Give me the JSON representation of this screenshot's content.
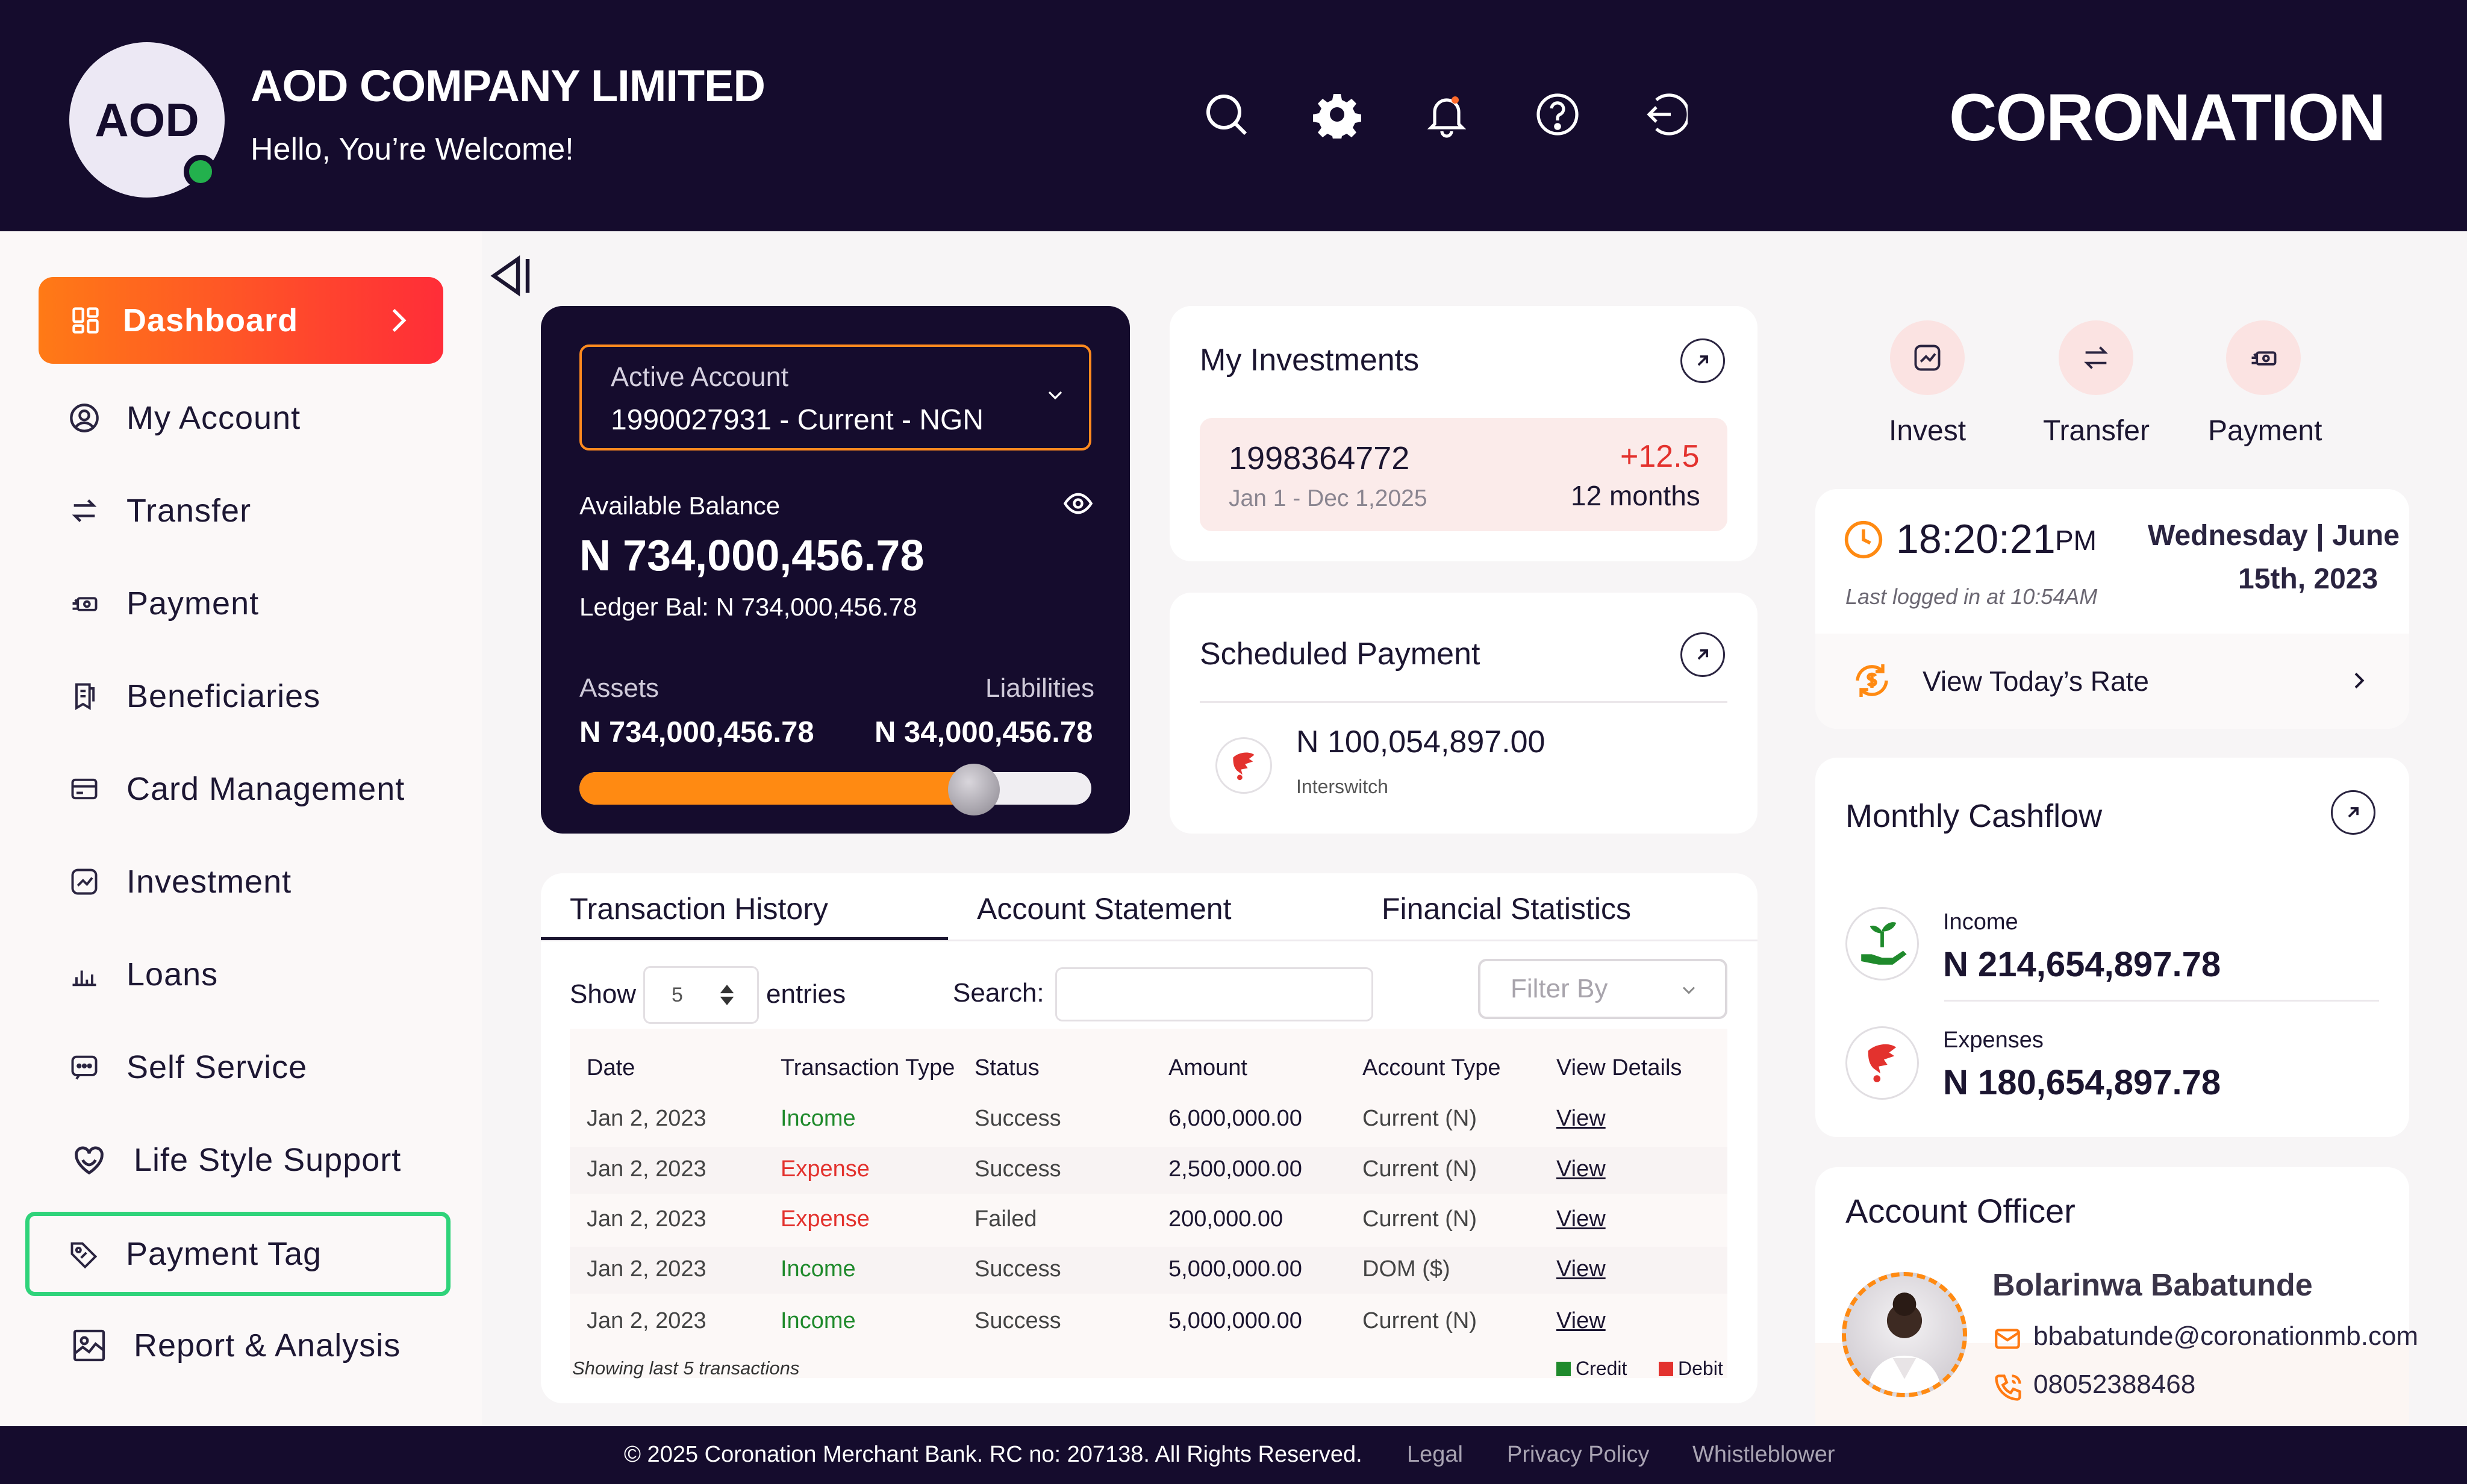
{
  "header": {
    "avatar_initials": "AOD",
    "company": "AOD COMPANY LIMITED",
    "welcome": "Hello, You’re Welcome!",
    "brand": "CORONATION",
    "icons": [
      "search-icon",
      "gear-icon",
      "bell-icon",
      "help-icon",
      "logout-icon"
    ]
  },
  "sidebar": {
    "items": [
      {
        "label": "Dashboard",
        "icon": "grid-icon"
      },
      {
        "label": "My Account",
        "icon": "user-circle-icon"
      },
      {
        "label": "Transfer",
        "icon": "transfer-icon"
      },
      {
        "label": "Payment",
        "icon": "payment-icon"
      },
      {
        "label": "Beneficiaries",
        "icon": "beneficiaries-icon"
      },
      {
        "label": "Card Management",
        "icon": "card-icon"
      },
      {
        "label": "Investment",
        "icon": "investment-icon"
      },
      {
        "label": "Loans",
        "icon": "loans-icon"
      },
      {
        "label": "Self Service",
        "icon": "self-service-icon"
      },
      {
        "label": "Life Style Support",
        "icon": "heart-icon"
      },
      {
        "label": "Payment Tag",
        "icon": "tag-icon"
      },
      {
        "label": "Report & Analysis",
        "icon": "report-icon"
      }
    ]
  },
  "account": {
    "select_label": "Active Account",
    "select_value": "1990027931 - Current - NGN",
    "available_label": "Available Balance",
    "available_value": "N 734,000,456.78",
    "ledger": "Ledger Bal: N 734,000,456.78",
    "assets_label": "Assets",
    "assets_value": "N 734,000,456.78",
    "liabilities_label": "Liabilities",
    "liabilities_value": "N 34,000,456.78",
    "progress_fraction": 0.77
  },
  "investments": {
    "title": "My Investments",
    "account": "1998364772",
    "range": "Jan 1 - Dec 1,2025",
    "change": "+12.5",
    "duration": "12 months"
  },
  "scheduled": {
    "title": "Scheduled Payment",
    "amount": "N 100,054,897.00",
    "payee": "Interswitch"
  },
  "tabs": [
    "Transaction History",
    "Account Statement",
    "Financial Statistics"
  ],
  "table": {
    "show_label": "Show",
    "show_value": "5",
    "entries_label": "entries",
    "search_label": "Search:",
    "search_value": "",
    "filter_placeholder": "Filter By",
    "headers": [
      "Date",
      "Transaction Type",
      "Status",
      "Amount",
      "Account Type",
      "View Details"
    ],
    "rows": [
      {
        "date": "Jan 2, 2023",
        "type": "Income",
        "status": "Success",
        "amount": "6,000,000.00",
        "account_type": "Current (N)",
        "view": "View"
      },
      {
        "date": "Jan 2, 2023",
        "type": "Expense",
        "status": "Success",
        "amount": "2,500,000.00",
        "account_type": "Current (N)",
        "view": "View"
      },
      {
        "date": "Jan 2, 2023",
        "type": "Expense",
        "status": "Failed",
        "amount": "200,000.00",
        "account_type": "Current (N)",
        "view": "View"
      },
      {
        "date": "Jan 2, 2023",
        "type": "Income",
        "status": "Success",
        "amount": "5,000,000.00",
        "account_type": "DOM ($)",
        "view": "View"
      },
      {
        "date": "Jan 2, 2023",
        "type": "Income",
        "status": "Success",
        "amount": "5,000,000.00",
        "account_type": "Current (N)",
        "view": "View"
      }
    ],
    "note": "Showing last 5 transactions",
    "legend_credit": "Credit",
    "legend_debit": "Debit"
  },
  "colors": {
    "income": "#1f8a2c",
    "expense": "#e3322e",
    "credit": "#1f8a2c",
    "debit": "#e3322e",
    "accent": "#ff8a12",
    "header_bg": "#150c2d"
  },
  "quick_actions": [
    {
      "label": "Invest",
      "icon": "invest-icon"
    },
    {
      "label": "Transfer",
      "icon": "transfer-icon"
    },
    {
      "label": "Payment",
      "icon": "payment-icon"
    }
  ],
  "time": {
    "clock": "18:20:21",
    "ampm": "PM",
    "date_line1": "Wednesday | June",
    "date_line2": "15th, 2023",
    "last_login": "Last logged in at 10:54AM",
    "rate_label": "View Today’s Rate"
  },
  "cashflow": {
    "title": "Monthly Cashflow",
    "income_label": "Income",
    "income_value": "N 214,654,897.78",
    "expenses_label": "Expenses",
    "expenses_value": "N 180,654,897.78"
  },
  "officer": {
    "title": "Account Officer",
    "name": "Bolarinwa Babatunde",
    "email": "bbabatunde@coronationmb.com",
    "phone": "08052388468"
  },
  "footer": {
    "copyright": "© 2025 Coronation Merchant Bank. RC no: 207138. All Rights Reserved.",
    "legal": "Legal",
    "privacy": "Privacy Policy",
    "whistle": "Whistleblower"
  }
}
